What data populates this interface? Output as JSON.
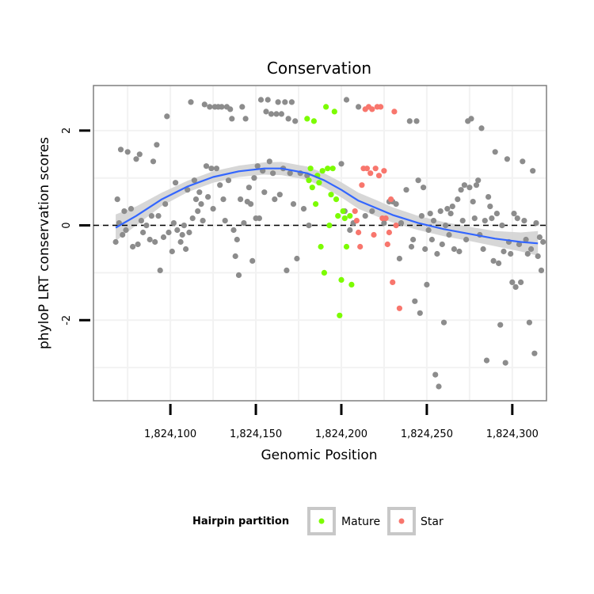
{
  "chart_data": {
    "type": "scatter",
    "title": "Conservation",
    "xlabel": "Genomic Position",
    "ylabel": "phyloP LRT conservation scores",
    "xlim": [
      1824055,
      1824320
    ],
    "ylim": [
      -3.7,
      2.95
    ],
    "x_ticks": [
      {
        "value": 1824100,
        "label": "1,824,100"
      },
      {
        "value": 1824150,
        "label": "1,824,150"
      },
      {
        "value": 1824200,
        "label": "1,824,200"
      },
      {
        "value": 1824250,
        "label": "1,824,250"
      },
      {
        "value": 1824300,
        "label": "1,824,300"
      }
    ],
    "y_ticks": [
      {
        "value": -2,
        "label": "-2"
      },
      {
        "value": 0,
        "label": "0"
      },
      {
        "value": 2,
        "label": "2"
      }
    ],
    "reference_line": {
      "y": 0,
      "style": "dashed"
    },
    "legend": {
      "title": "Hairpin partition",
      "position": "bottom",
      "entries": [
        {
          "label": "Mature",
          "color": "#7CFC00"
        },
        {
          "label": "Star",
          "color": "#F8766D"
        }
      ]
    },
    "colors": {
      "other": "#8C8C8C",
      "mature": "#7CFC00",
      "star": "#F8766D",
      "smooth": "#3366FF",
      "band": "#D3D3D3"
    },
    "smooth": {
      "x": [
        1824068,
        1824080,
        1824095,
        1824110,
        1824125,
        1824140,
        1824155,
        1824165,
        1824180,
        1824190,
        1824200,
        1824210,
        1824220,
        1824230,
        1824245,
        1824260,
        1824275,
        1824290,
        1824305,
        1824315
      ],
      "y": [
        -0.05,
        0.2,
        0.55,
        0.82,
        1.02,
        1.14,
        1.2,
        1.2,
        1.1,
        0.95,
        0.75,
        0.52,
        0.37,
        0.22,
        0.05,
        -0.08,
        -0.18,
        -0.28,
        -0.35,
        -0.38
      ],
      "se": [
        0.28,
        0.2,
        0.14,
        0.12,
        0.12,
        0.12,
        0.13,
        0.14,
        0.14,
        0.15,
        0.16,
        0.17,
        0.17,
        0.16,
        0.15,
        0.15,
        0.15,
        0.16,
        0.2,
        0.26
      ]
    },
    "series": [
      {
        "name": "Other",
        "points": [
          [
            1824068,
            -0.35
          ],
          [
            1824069,
            0.55
          ],
          [
            1824070,
            0.05
          ],
          [
            1824071,
            1.6
          ],
          [
            1824072,
            -0.2
          ],
          [
            1824073,
            0.3
          ],
          [
            1824074,
            -0.1
          ],
          [
            1824075,
            1.55
          ],
          [
            1824077,
            0.35
          ],
          [
            1824078,
            -0.45
          ],
          [
            1824080,
            1.4
          ],
          [
            1824081,
            -0.4
          ],
          [
            1824082,
            1.5
          ],
          [
            1824083,
            0.1
          ],
          [
            1824084,
            -0.15
          ],
          [
            1824086,
            0.0
          ],
          [
            1824088,
            -0.3
          ],
          [
            1824089,
            0.2
          ],
          [
            1824090,
            1.35
          ],
          [
            1824091,
            -0.35
          ],
          [
            1824092,
            1.7
          ],
          [
            1824093,
            0.2
          ],
          [
            1824094,
            -0.95
          ],
          [
            1824096,
            -0.25
          ],
          [
            1824097,
            0.45
          ],
          [
            1824098,
            2.3
          ],
          [
            1824099,
            -0.15
          ],
          [
            1824101,
            -0.55
          ],
          [
            1824102,
            0.05
          ],
          [
            1824103,
            0.9
          ],
          [
            1824104,
            -0.1
          ],
          [
            1824106,
            -0.35
          ],
          [
            1824107,
            -0.2
          ],
          [
            1824108,
            0.0
          ],
          [
            1824109,
            -0.5
          ],
          [
            1824110,
            0.75
          ],
          [
            1824111,
            -0.15
          ],
          [
            1824112,
            2.6
          ],
          [
            1824113,
            0.15
          ],
          [
            1824114,
            0.95
          ],
          [
            1824115,
            0.55
          ],
          [
            1824116,
            0.3
          ],
          [
            1824117,
            0.7
          ],
          [
            1824118,
            0.45
          ],
          [
            1824119,
            0.1
          ],
          [
            1824120,
            2.55
          ],
          [
            1824121,
            1.25
          ],
          [
            1824122,
            0.6
          ],
          [
            1824123,
            2.5
          ],
          [
            1824124,
            1.2
          ],
          [
            1824125,
            0.35
          ],
          [
            1824126,
            2.5
          ],
          [
            1824127,
            1.2
          ],
          [
            1824128,
            2.5
          ],
          [
            1824129,
            0.85
          ],
          [
            1824130,
            2.5
          ],
          [
            1824131,
            0.55
          ],
          [
            1824132,
            0.1
          ],
          [
            1824133,
            2.5
          ],
          [
            1824134,
            0.95
          ],
          [
            1824135,
            2.45
          ],
          [
            1824136,
            2.25
          ],
          [
            1824137,
            -0.1
          ],
          [
            1824138,
            -0.65
          ],
          [
            1824139,
            -0.3
          ],
          [
            1824140,
            -1.05
          ],
          [
            1824141,
            0.55
          ],
          [
            1824142,
            2.5
          ],
          [
            1824143,
            0.05
          ],
          [
            1824144,
            2.25
          ],
          [
            1824145,
            0.5
          ],
          [
            1824146,
            0.8
          ],
          [
            1824147,
            0.45
          ],
          [
            1824148,
            -0.75
          ],
          [
            1824149,
            1.0
          ],
          [
            1824150,
            0.15
          ],
          [
            1824151,
            1.25
          ],
          [
            1824152,
            0.15
          ],
          [
            1824153,
            2.65
          ],
          [
            1824154,
            1.15
          ],
          [
            1824155,
            0.7
          ],
          [
            1824156,
            2.4
          ],
          [
            1824157,
            2.65
          ],
          [
            1824158,
            1.35
          ],
          [
            1824159,
            2.35
          ],
          [
            1824160,
            1.1
          ],
          [
            1824161,
            0.55
          ],
          [
            1824162,
            2.35
          ],
          [
            1824163,
            2.6
          ],
          [
            1824164,
            0.65
          ],
          [
            1824165,
            2.35
          ],
          [
            1824166,
            1.2
          ],
          [
            1824167,
            2.6
          ],
          [
            1824168,
            -0.95
          ],
          [
            1824169,
            2.25
          ],
          [
            1824170,
            1.1
          ],
          [
            1824171,
            2.6
          ],
          [
            1824172,
            0.45
          ],
          [
            1824173,
            2.2
          ],
          [
            1824174,
            -0.7
          ],
          [
            1824176,
            1.1
          ],
          [
            1824178,
            0.35
          ],
          [
            1824180,
            1.05
          ],
          [
            1824181,
            0.0
          ],
          [
            1824200,
            1.3
          ],
          [
            1824202,
            0.3
          ],
          [
            1824203,
            2.65
          ],
          [
            1824205,
            -0.1
          ],
          [
            1824207,
            0.05
          ],
          [
            1824210,
            2.5
          ],
          [
            1824214,
            0.2
          ],
          [
            1824218,
            0.3
          ],
          [
            1824225,
            0.05
          ],
          [
            1824228,
            0.5
          ],
          [
            1824230,
            0.5
          ],
          [
            1824232,
            0.45
          ],
          [
            1824234,
            -0.7
          ],
          [
            1824235,
            0.05
          ],
          [
            1824238,
            0.75
          ],
          [
            1824240,
            2.2
          ],
          [
            1824241,
            -0.45
          ],
          [
            1824242,
            -0.3
          ],
          [
            1824243,
            -1.6
          ],
          [
            1824244,
            2.2
          ],
          [
            1824245,
            0.95
          ],
          [
            1824246,
            -1.85
          ],
          [
            1824247,
            0.2
          ],
          [
            1824248,
            0.8
          ],
          [
            1824249,
            -0.5
          ],
          [
            1824250,
            -1.25
          ],
          [
            1824251,
            -0.1
          ],
          [
            1824252,
            0.25
          ],
          [
            1824253,
            -0.3
          ],
          [
            1824254,
            0.1
          ],
          [
            1824255,
            -3.15
          ],
          [
            1824256,
            -0.6
          ],
          [
            1824257,
            -3.4
          ],
          [
            1824258,
            0.3
          ],
          [
            1824259,
            -0.4
          ],
          [
            1824260,
            -2.05
          ],
          [
            1824261,
            0.0
          ],
          [
            1824262,
            0.35
          ],
          [
            1824263,
            -0.2
          ],
          [
            1824264,
            0.25
          ],
          [
            1824265,
            0.4
          ],
          [
            1824266,
            -0.5
          ],
          [
            1824268,
            0.55
          ],
          [
            1824269,
            -0.55
          ],
          [
            1824270,
            0.75
          ],
          [
            1824271,
            0.1
          ],
          [
            1824272,
            0.85
          ],
          [
            1824273,
            -0.3
          ],
          [
            1824274,
            2.2
          ],
          [
            1824275,
            0.8
          ],
          [
            1824276,
            2.25
          ],
          [
            1824277,
            0.5
          ],
          [
            1824278,
            0.15
          ],
          [
            1824279,
            0.85
          ],
          [
            1824280,
            0.95
          ],
          [
            1824281,
            -0.2
          ],
          [
            1824282,
            2.05
          ],
          [
            1824283,
            -0.5
          ],
          [
            1824284,
            0.1
          ],
          [
            1824285,
            -2.85
          ],
          [
            1824286,
            0.6
          ],
          [
            1824287,
            0.4
          ],
          [
            1824288,
            0.15
          ],
          [
            1824289,
            -0.75
          ],
          [
            1824290,
            1.55
          ],
          [
            1824291,
            0.25
          ],
          [
            1824292,
            -0.8
          ],
          [
            1824293,
            -2.1
          ],
          [
            1824294,
            0.0
          ],
          [
            1824295,
            -0.55
          ],
          [
            1824296,
            -2.9
          ],
          [
            1824297,
            1.4
          ],
          [
            1824298,
            -0.35
          ],
          [
            1824299,
            -0.6
          ],
          [
            1824300,
            -1.2
          ],
          [
            1824301,
            0.25
          ],
          [
            1824302,
            -1.3
          ],
          [
            1824303,
            0.15
          ],
          [
            1824304,
            -0.4
          ],
          [
            1824305,
            -1.2
          ],
          [
            1824306,
            1.35
          ],
          [
            1824307,
            0.1
          ],
          [
            1824308,
            -0.3
          ],
          [
            1824309,
            -0.6
          ],
          [
            1824310,
            -2.05
          ],
          [
            1824311,
            -0.5
          ],
          [
            1824312,
            1.15
          ],
          [
            1824313,
            -2.7
          ],
          [
            1824314,
            0.05
          ],
          [
            1824315,
            -0.65
          ],
          [
            1824316,
            -0.25
          ],
          [
            1824317,
            -0.95
          ],
          [
            1824318,
            -0.35
          ]
        ]
      },
      {
        "name": "Mature",
        "points": [
          [
            1824180,
            2.25
          ],
          [
            1824181,
            0.95
          ],
          [
            1824182,
            1.2
          ],
          [
            1824183,
            0.8
          ],
          [
            1824184,
            2.2
          ],
          [
            1824185,
            0.45
          ],
          [
            1824186,
            1.05
          ],
          [
            1824187,
            0.9
          ],
          [
            1824188,
            -0.45
          ],
          [
            1824189,
            1.15
          ],
          [
            1824190,
            -1.0
          ],
          [
            1824191,
            2.5
          ],
          [
            1824192,
            1.2
          ],
          [
            1824193,
            0.0
          ],
          [
            1824194,
            0.65
          ],
          [
            1824195,
            1.2
          ],
          [
            1824196,
            2.4
          ],
          [
            1824197,
            0.55
          ],
          [
            1824198,
            0.2
          ],
          [
            1824199,
            -1.9
          ],
          [
            1824200,
            -1.15
          ],
          [
            1824201,
            0.3
          ],
          [
            1824202,
            0.15
          ],
          [
            1824203,
            -0.45
          ],
          [
            1824205,
            0.2
          ],
          [
            1824206,
            -1.25
          ]
        ]
      },
      {
        "name": "Star",
        "points": [
          [
            1824208,
            0.3
          ],
          [
            1824209,
            0.1
          ],
          [
            1824210,
            -0.15
          ],
          [
            1824211,
            -0.45
          ],
          [
            1824212,
            0.85
          ],
          [
            1824213,
            1.2
          ],
          [
            1824214,
            2.45
          ],
          [
            1824215,
            1.2
          ],
          [
            1824216,
            2.5
          ],
          [
            1824217,
            1.1
          ],
          [
            1824218,
            2.45
          ],
          [
            1824219,
            -0.2
          ],
          [
            1824220,
            1.2
          ],
          [
            1824221,
            2.5
          ],
          [
            1824222,
            1.05
          ],
          [
            1824223,
            2.5
          ],
          [
            1824224,
            0.15
          ],
          [
            1824225,
            1.15
          ],
          [
            1824226,
            0.15
          ],
          [
            1824227,
            -0.4
          ],
          [
            1824228,
            -0.15
          ],
          [
            1824229,
            0.55
          ],
          [
            1824230,
            -1.2
          ],
          [
            1824231,
            2.4
          ],
          [
            1824232,
            0.0
          ],
          [
            1824234,
            -1.75
          ]
        ]
      }
    ]
  }
}
